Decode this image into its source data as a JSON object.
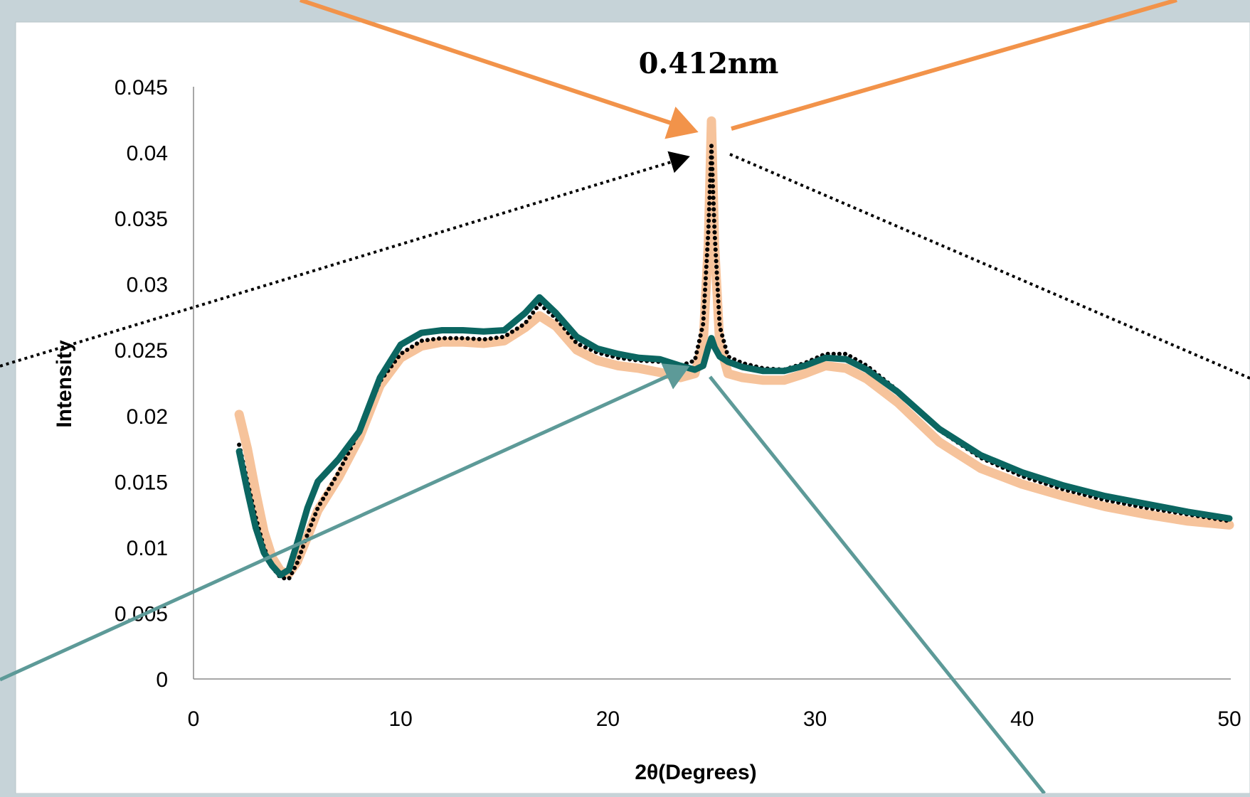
{
  "colors": {
    "page_background": "#c6d3d8",
    "plot_background": "#ffffff",
    "series_orange_light": "#f6c39b",
    "series_dotted_black": "#000000",
    "series_teal_dark": "#0b6661",
    "arrow_orange": "#f2934a",
    "arrow_teal": "#5d9a98",
    "arrow_dotted_black": "#000000"
  },
  "chart_data": {
    "type": "line",
    "title": "",
    "annotation": "0.412nm",
    "xlabel": "2θ(Degrees)",
    "ylabel": "Intensity",
    "xlim": [
      0,
      50
    ],
    "ylim": [
      0,
      0.045
    ],
    "x_ticks": [
      "0",
      "10",
      "20",
      "30",
      "40",
      "50"
    ],
    "y_ticks": [
      "0",
      "0.005",
      "0.01",
      "0.015",
      "0.02",
      "0.025",
      "0.03",
      "0.035",
      "0.04",
      "0.045"
    ],
    "grid": false,
    "legend": "none",
    "series": [
      {
        "style": "thick-light-orange",
        "x": [
          2.2,
          2.6,
          3.0,
          3.4,
          3.8,
          4.2,
          4.6,
          5.0,
          5.5,
          6.0,
          7.0,
          8.0,
          9.0,
          10.0,
          11.0,
          12.0,
          13.0,
          14.0,
          15.0,
          16.0,
          16.7,
          17.5,
          18.5,
          19.5,
          20.5,
          21.5,
          22.5,
          23.5,
          24.2,
          24.6,
          24.85,
          25.0,
          25.15,
          25.4,
          25.8,
          26.5,
          27.5,
          28.5,
          29.5,
          30.5,
          31.5,
          32.5,
          34.0,
          36.0,
          38.0,
          40.0,
          42.0,
          44.0,
          46.0,
          48.0,
          50.0
        ],
        "y": [
          0.0201,
          0.0175,
          0.0142,
          0.0112,
          0.0092,
          0.0082,
          0.008,
          0.0089,
          0.0108,
          0.0128,
          0.0153,
          0.0183,
          0.0223,
          0.0244,
          0.0253,
          0.0256,
          0.0256,
          0.0255,
          0.0257,
          0.0267,
          0.0276,
          0.0268,
          0.025,
          0.0242,
          0.0238,
          0.0236,
          0.0233,
          0.0229,
          0.0232,
          0.0255,
          0.033,
          0.0424,
          0.033,
          0.0255,
          0.0232,
          0.0229,
          0.0227,
          0.0227,
          0.0232,
          0.0238,
          0.0236,
          0.0228,
          0.021,
          0.018,
          0.016,
          0.0148,
          0.0139,
          0.0131,
          0.0125,
          0.012,
          0.0117
        ]
      },
      {
        "style": "dotted-black",
        "x": [
          2.2,
          2.6,
          3.0,
          3.4,
          3.8,
          4.2,
          4.6,
          5.0,
          5.5,
          6.0,
          7.0,
          8.0,
          9.0,
          10.0,
          11.0,
          12.0,
          13.0,
          14.0,
          15.0,
          16.0,
          16.7,
          17.5,
          18.5,
          19.5,
          20.5,
          21.5,
          22.5,
          23.5,
          24.2,
          24.6,
          24.85,
          25.0,
          25.15,
          25.4,
          25.8,
          26.5,
          27.5,
          28.5,
          29.5,
          30.5,
          31.5,
          32.5,
          34.0,
          36.0,
          38.0,
          40.0,
          42.0,
          44.0,
          46.0,
          48.0,
          50.0
        ],
        "y": [
          0.0178,
          0.015,
          0.0123,
          0.01,
          0.0085,
          0.0077,
          0.0076,
          0.0088,
          0.011,
          0.013,
          0.0157,
          0.0188,
          0.0226,
          0.0247,
          0.0257,
          0.0259,
          0.0259,
          0.0258,
          0.026,
          0.027,
          0.0285,
          0.0274,
          0.0255,
          0.0248,
          0.0244,
          0.0242,
          0.0241,
          0.0238,
          0.0242,
          0.027,
          0.034,
          0.0405,
          0.034,
          0.0268,
          0.0245,
          0.024,
          0.0236,
          0.0235,
          0.024,
          0.0247,
          0.0247,
          0.0238,
          0.0219,
          0.0189,
          0.0168,
          0.0154,
          0.0144,
          0.0136,
          0.013,
          0.0125,
          0.012
        ]
      },
      {
        "style": "thick-dark-teal",
        "x": [
          2.2,
          2.6,
          3.0,
          3.4,
          3.8,
          4.2,
          4.6,
          5.0,
          5.5,
          6.0,
          7.0,
          8.0,
          9.0,
          10.0,
          11.0,
          12.0,
          13.0,
          14.0,
          15.0,
          16.0,
          16.7,
          17.5,
          18.5,
          19.5,
          20.5,
          21.5,
          22.5,
          23.5,
          24.2,
          24.6,
          24.85,
          25.0,
          25.15,
          25.4,
          25.8,
          26.5,
          27.5,
          28.5,
          29.5,
          30.5,
          31.5,
          32.5,
          34.0,
          36.0,
          38.0,
          40.0,
          42.0,
          44.0,
          46.0,
          48.0,
          50.0
        ],
        "y": [
          0.0173,
          0.0143,
          0.0115,
          0.0096,
          0.0086,
          0.0079,
          0.0083,
          0.0103,
          0.013,
          0.015,
          0.0167,
          0.0188,
          0.0229,
          0.0254,
          0.0263,
          0.0265,
          0.0265,
          0.0264,
          0.0265,
          0.0278,
          0.029,
          0.0278,
          0.026,
          0.0251,
          0.0247,
          0.0244,
          0.0243,
          0.0238,
          0.0235,
          0.0238,
          0.0252,
          0.0259,
          0.0252,
          0.0245,
          0.0241,
          0.0237,
          0.0234,
          0.0234,
          0.0238,
          0.0244,
          0.0243,
          0.0235,
          0.0218,
          0.019,
          0.017,
          0.0157,
          0.0147,
          0.0139,
          0.0133,
          0.0127,
          0.0122
        ]
      }
    ]
  }
}
